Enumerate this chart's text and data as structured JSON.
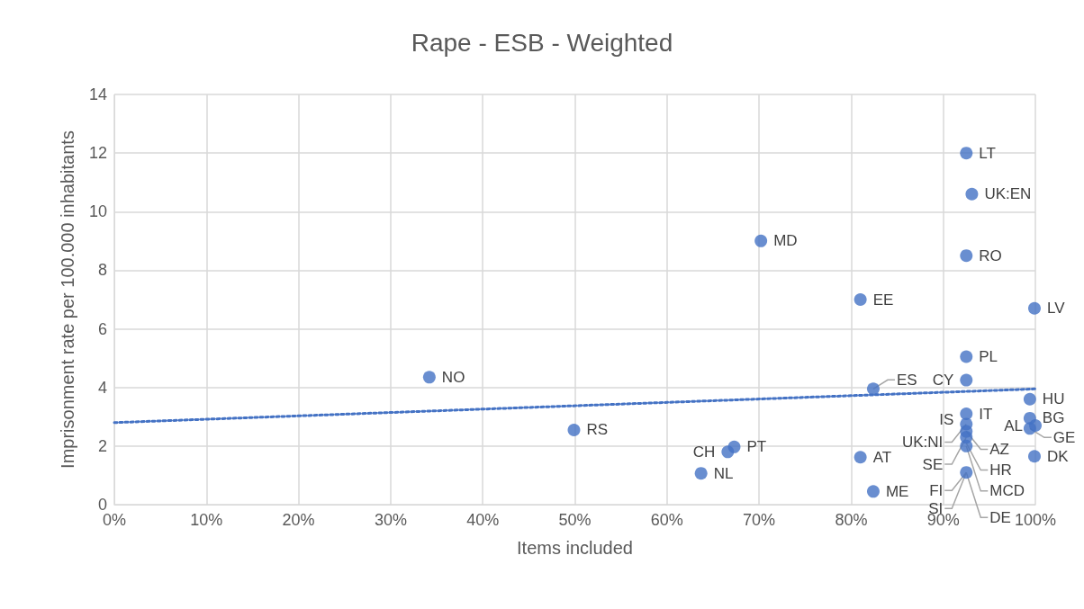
{
  "chart_data": {
    "type": "scatter",
    "title": "Rape - ESB - Weighted",
    "xlabel": "Items included",
    "ylabel": "Imprisonment rate per 100.000 inhabitants",
    "series": [
      {
        "color": "#4472c4",
        "marker": "circle",
        "x": [
          92.5,
          93.1,
          70.2,
          92.5,
          81.0,
          99.9,
          92.5,
          34.2,
          92.5,
          82.4,
          99.4,
          99.4,
          100,
          99.4,
          99.9,
          92.5,
          92.5,
          92.5,
          92.5,
          92.5,
          92.5,
          49.9,
          67.3,
          66.6,
          63.7,
          81.0,
          82.4
        ],
        "values": [
          12.0,
          10.6,
          9.0,
          8.5,
          7.0,
          6.7,
          5.05,
          4.35,
          4.25,
          3.95,
          3.6,
          2.95,
          2.7,
          2.6,
          1.65,
          3.1,
          2.75,
          2.5,
          2.3,
          2.0,
          1.1,
          2.55,
          1.97,
          1.8,
          1.07,
          1.62,
          0.45
        ]
      },
      {
        "type": "line",
        "color": "#4472c4",
        "line_style": "dotted",
        "marker": "none",
        "x": [
          0,
          100
        ],
        "values": [
          2.8,
          3.95
        ]
      }
    ],
    "annotations": [
      {
        "text": "LT",
        "x": 92.5,
        "y": 12.0
      },
      {
        "text": "UK:EN",
        "x": 93.1,
        "y": 10.6
      },
      {
        "text": "MD",
        "x": 70.2,
        "y": 9.0
      },
      {
        "text": "RO",
        "x": 92.5,
        "y": 8.5
      },
      {
        "text": "EE",
        "x": 81.0,
        "y": 7.0
      },
      {
        "text": "LV",
        "x": 99.9,
        "y": 6.7
      },
      {
        "text": "PL",
        "x": 92.5,
        "y": 5.05
      },
      {
        "text": "NO",
        "x": 34.2,
        "y": 4.35
      },
      {
        "text": "CY",
        "x": 92.5,
        "y": 4.25
      },
      {
        "text": "ES",
        "x": 82.4,
        "y": 3.95
      },
      {
        "text": "HU",
        "x": 99.4,
        "y": 3.6
      },
      {
        "text": "BG",
        "x": 99.4,
        "y": 2.95
      },
      {
        "text": "AL",
        "x": 100,
        "y": 2.7
      },
      {
        "text": "GE",
        "x": 99.4,
        "y": 2.6
      },
      {
        "text": "DK",
        "x": 99.9,
        "y": 1.65
      },
      {
        "text": "IT",
        "x": 92.5,
        "y": 3.1
      },
      {
        "text": "IS",
        "x": 92.5,
        "y": 2.9
      },
      {
        "text": "UK:NI",
        "x": 92.5,
        "y": 2.75
      },
      {
        "text": "AZ",
        "x": 92.5,
        "y": 2.5
      },
      {
        "text": "SE",
        "x": 92.5,
        "y": 2.3
      },
      {
        "text": "HR",
        "x": 92.5,
        "y": 2.1
      },
      {
        "text": "MCD",
        "x": 92.5,
        "y": 2.0
      },
      {
        "text": "FI",
        "x": 92.5,
        "y": 1.1
      },
      {
        "text": "SI",
        "x": 92.5,
        "y": 1.1
      },
      {
        "text": "DE",
        "x": 92.5,
        "y": 1.1
      },
      {
        "text": "RS",
        "x": 49.9,
        "y": 2.55
      },
      {
        "text": "PT",
        "x": 67.3,
        "y": 1.97
      },
      {
        "text": "CH",
        "x": 66.6,
        "y": 1.8
      },
      {
        "text": "NL",
        "x": 63.7,
        "y": 1.07
      },
      {
        "text": "AT",
        "x": 81.0,
        "y": 1.62
      },
      {
        "text": "ME",
        "x": 82.4,
        "y": 0.45
      }
    ],
    "xlim": [
      0,
      100
    ],
    "xticks": [
      {
        "value": 0,
        "label": "0%"
      },
      {
        "value": 10,
        "label": "10%"
      },
      {
        "value": 20,
        "label": "20%"
      },
      {
        "value": 30,
        "label": "30%"
      },
      {
        "value": 40,
        "label": "40%"
      },
      {
        "value": 50,
        "label": "50%"
      },
      {
        "value": 60,
        "label": "60%"
      },
      {
        "value": 70,
        "label": "70%"
      },
      {
        "value": 80,
        "label": "80%"
      },
      {
        "value": 90,
        "label": "90%"
      },
      {
        "value": 100,
        "label": "100%"
      }
    ],
    "ylim": [
      0,
      14
    ],
    "yticks": [
      0,
      2,
      4,
      6,
      8,
      10,
      12,
      14
    ],
    "grid": true
  }
}
